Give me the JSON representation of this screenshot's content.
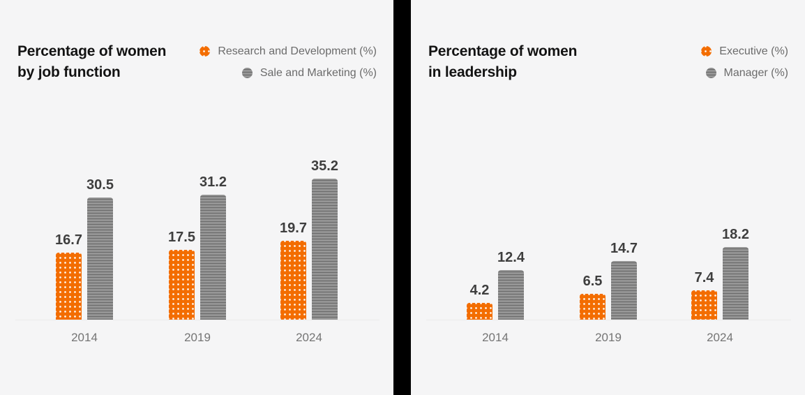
{
  "page": {
    "background_color": "#f5f5f6",
    "divider_color": "#000000",
    "axis_line_color": "#ebebeb",
    "value_label_color": "#3e3e3e",
    "tick_label_color": "#747474",
    "legend_label_color": "#6b6b6b",
    "title_color": "#131313"
  },
  "chart_data": [
    {
      "type": "bar",
      "title": "Percentage of women by job function",
      "title_lines": [
        "Percentage of women",
        "by job function"
      ],
      "categories": [
        "2014",
        "2019",
        "2024"
      ],
      "series": [
        {
          "name": "Research and Development (%)",
          "values": [
            16.7,
            17.5,
            19.7
          ],
          "color": "#f36d00",
          "pattern": "dots"
        },
        {
          "name": "Sale and Marketing (%)",
          "values": [
            30.5,
            31.2,
            35.2
          ],
          "color": "#8f8f8f",
          "pattern": "horizontal-lines"
        }
      ],
      "ylim": [
        0,
        40
      ],
      "value_labels": true,
      "grid": false,
      "legend_position": "top-right"
    },
    {
      "type": "bar",
      "title": "Percentage of women in leadership",
      "title_lines": [
        "Percentage of women",
        "in leadership"
      ],
      "categories": [
        "2014",
        "2019",
        "2024"
      ],
      "series": [
        {
          "name": "Executive (%)",
          "values": [
            4.2,
            6.5,
            7.4
          ],
          "color": "#f36d00",
          "pattern": "dots"
        },
        {
          "name": "Manager (%)",
          "values": [
            12.4,
            14.7,
            18.2
          ],
          "color": "#8f8f8f",
          "pattern": "horizontal-lines"
        }
      ],
      "ylim": [
        0,
        40
      ],
      "value_labels": true,
      "grid": false,
      "legend_position": "top-right"
    }
  ]
}
